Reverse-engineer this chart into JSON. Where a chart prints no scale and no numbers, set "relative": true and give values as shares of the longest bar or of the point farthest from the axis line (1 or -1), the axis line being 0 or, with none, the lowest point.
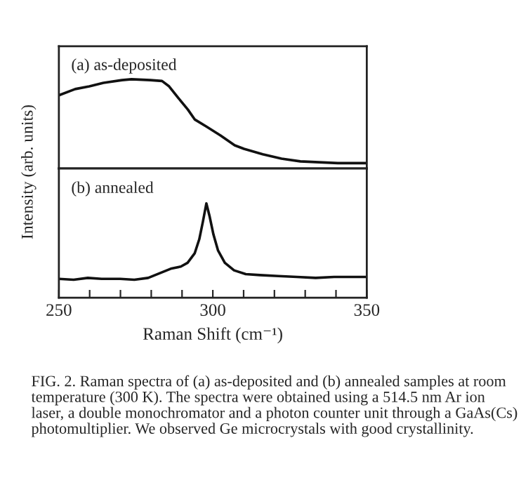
{
  "chart_data": [
    {
      "type": "line",
      "title": "(a) as-deposited",
      "ylabel": "Intensity (arb. units)",
      "relative": true,
      "tick_labels": false,
      "xlim": [
        250,
        350
      ],
      "x": [
        250,
        255.3,
        259.9,
        264.5,
        270.5,
        273.6,
        279.7,
        283.5,
        285.8,
        288.8,
        291.9,
        294.1,
        297.9,
        302.5,
        307.1,
        310.1,
        316.2,
        322.3,
        328.4,
        334.5,
        340.6,
        346.6,
        350
      ],
      "series": [
        {
          "color": "#111111",
          "values": [
            0.82,
            0.89,
            0.92,
            0.96,
            0.99,
            1.0,
            0.99,
            0.98,
            0.92,
            0.79,
            0.66,
            0.55,
            0.47,
            0.37,
            0.26,
            0.22,
            0.16,
            0.11,
            0.08,
            0.07,
            0.06,
            0.06,
            0.06
          ]
        }
      ],
      "grid": false,
      "legend": false
    },
    {
      "type": "line",
      "title": "(b) annealed",
      "xlabel": "Raman Shift (cm⁻¹)",
      "relative": true,
      "tick_labels": "x",
      "xlim": [
        250,
        350
      ],
      "xticks": [
        250,
        {
          "value": 260,
          "label": null
        },
        {
          "value": 270,
          "label": null
        },
        {
          "value": 280,
          "label": null
        },
        {
          "value": 290,
          "label": null
        },
        300,
        {
          "value": 310,
          "label": null
        },
        {
          "value": 320,
          "label": null
        },
        {
          "value": 330,
          "label": null
        },
        {
          "value": 340,
          "label": null
        },
        350
      ],
      "x": [
        250,
        254.8,
        259.4,
        263.9,
        269.9,
        274.5,
        279.0,
        283.5,
        286.6,
        289.6,
        291.8,
        294.1,
        295.6,
        296.8,
        297.9,
        298.9,
        300.2,
        301.7,
        303.9,
        306.9,
        310.7,
        315.3,
        321.3,
        327.3,
        333.4,
        339.4,
        345.5,
        350
      ],
      "series": [
        {
          "color": "#111111",
          "values": [
            0.2,
            0.19,
            0.21,
            0.2,
            0.2,
            0.19,
            0.21,
            0.27,
            0.31,
            0.33,
            0.37,
            0.47,
            0.62,
            0.81,
            1.0,
            0.87,
            0.67,
            0.5,
            0.37,
            0.29,
            0.25,
            0.24,
            0.23,
            0.22,
            0.21,
            0.22,
            0.22,
            0.22
          ]
        }
      ],
      "annotations": [
        "FIG. 2. Raman spectra of (a) as-deposited and (b) annealed samples at room temperature (300 K). The spectra were obtained using a 514.5 nm Ar ion laser, a double monochromator and a photon counter unit through a GaAs(Cs) photomultiplier. We observed Ge microcrystals with good crystallinity."
      ],
      "grid": false,
      "legend": false
    }
  ]
}
